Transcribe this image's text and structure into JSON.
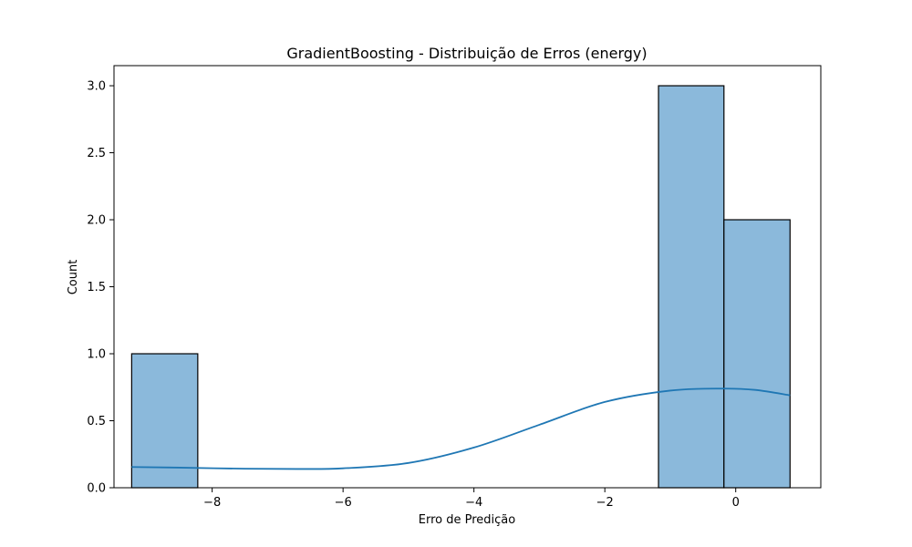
{
  "chart_data": {
    "type": "bar",
    "title": "GradientBoosting - Distribuição de Erros (energy)",
    "xlabel": "Erro de Predição",
    "ylabel": "Count",
    "xlim": [
      -9.5,
      1.3
    ],
    "ylim": [
      0,
      3.15
    ],
    "xticks": [
      -8,
      -6,
      -4,
      -2,
      0
    ],
    "xtick_labels": [
      "−8",
      "−6",
      "−4",
      "−2",
      "0"
    ],
    "yticks": [
      0.0,
      0.5,
      1.0,
      1.5,
      2.0,
      2.5,
      3.0
    ],
    "ytick_labels": [
      "0.0",
      "0.5",
      "1.0",
      "1.5",
      "2.0",
      "2.5",
      "3.0"
    ],
    "bins": [
      {
        "x0": -9.23,
        "x1": -8.22,
        "count": 1
      },
      {
        "x0": -8.22,
        "x1": -7.22,
        "count": 0
      },
      {
        "x0": -7.22,
        "x1": -6.21,
        "count": 0
      },
      {
        "x0": -6.21,
        "x1": -5.21,
        "count": 0
      },
      {
        "x0": -5.21,
        "x1": -4.2,
        "count": 0
      },
      {
        "x0": -4.2,
        "x1": -3.19,
        "count": 0
      },
      {
        "x0": -3.19,
        "x1": -2.19,
        "count": 0
      },
      {
        "x0": -2.19,
        "x1": -1.18,
        "count": 0
      },
      {
        "x0": -1.18,
        "x1": -0.18,
        "count": 3
      },
      {
        "x0": -0.18,
        "x1": 0.83,
        "count": 2
      }
    ],
    "kde": {
      "x": [
        -9.23,
        -8.5,
        -7.5,
        -6.7,
        -6.0,
        -5.0,
        -4.0,
        -3.0,
        -2.0,
        -1.0,
        -0.2,
        0.3,
        0.83
      ],
      "y": [
        0.155,
        0.15,
        0.142,
        0.14,
        0.145,
        0.185,
        0.3,
        0.47,
        0.64,
        0.725,
        0.74,
        0.73,
        0.69
      ]
    },
    "colors": {
      "bar_fill": "#8bb9db",
      "bar_edge": "#000000",
      "kde_line": "#1f77b4"
    }
  }
}
